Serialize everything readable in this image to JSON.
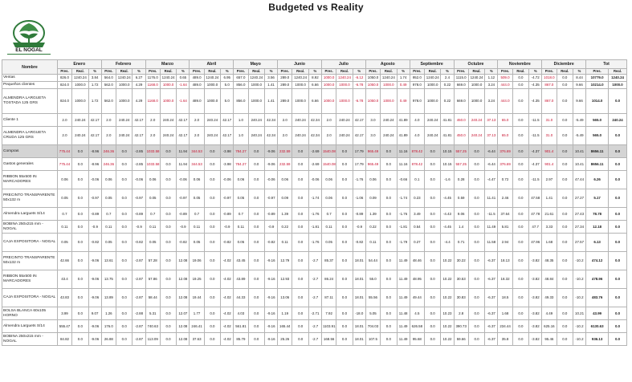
{
  "title": "Budgeted vs Reality",
  "logo": {
    "name": "EL NOGAL"
  },
  "months": [
    "Enero",
    "Febrero",
    "Marzo",
    "Abril",
    "Mayo",
    "Junio",
    "Julio",
    "Agosto",
    "Septiembre",
    "Octubre",
    "Noviembre",
    "Diciembre"
  ],
  "header": {
    "nombre": "Nombre",
    "tot": "Tot",
    "pres": "Pres.",
    "real": "Real.",
    "pct": "%"
  },
  "rows": [
    {
      "name": "Ventas",
      "hl": false,
      "h": "r-thin",
      "cells": [
        "826.0",
        "1240.24",
        "3.84",
        "564.0",
        "1240.24",
        "6.27",
        "1176.0",
        "1240.24",
        "0.65",
        "489.0",
        "1240.24",
        "6.95",
        "657.0",
        "1240.24",
        "3.56",
        "289.0",
        "1240.24",
        "8.92",
        "1000.0",
        "1240.24",
        "-6.12",
        "1050.0",
        "1240.24",
        "1.74",
        "952.0",
        "1240.24",
        "2.4",
        "1115.0",
        "1240.24",
        "1.12",
        "509.0",
        "0.0",
        "-4.72",
        "1018.0",
        "0.0",
        "8.44"
      ],
      "tot": [
        "10779.0",
        "1240.24"
      ],
      "red": [
        18,
        19,
        20,
        30,
        33
      ]
    },
    {
      "name": "Pequeños clientes",
      "hl": false,
      "h": "r-thin",
      "cells": [
        "824.0",
        "1000.0",
        "1.72",
        "562.0",
        "1000.0",
        "4.29",
        "1168.0",
        "1000.0",
        "-1.64",
        "489.0",
        "1000.0",
        "5.0",
        "856.0",
        "1000.0",
        "1.41",
        "289.0",
        "1000.0",
        "6.66",
        "1000.0",
        "1000.0",
        "-6.78",
        "1050.0",
        "1000.0",
        "0.49",
        "978.0",
        "1000.0",
        "0.22",
        "669.0",
        "1000.0",
        "3.24",
        "444.0",
        "0.0",
        "-4.35",
        "867.0",
        "0.0",
        "9.66"
      ],
      "tot": [
        "10214.0",
        "1000.0"
      ],
      "red": [
        6,
        7,
        8,
        18,
        19,
        20,
        21,
        22,
        23,
        30,
        33
      ]
    },
    {
      "name": "ALMENDRA LARGUETA TOSTADA 125 GRS",
      "hl": false,
      "h": "r-xt",
      "cells": [
        "824.0",
        "1000.0",
        "1.72",
        "562.0",
        "1000.0",
        "4.29",
        "1168.0",
        "1000.0",
        "-1.64",
        "489.0",
        "1000.0",
        "5.0",
        "856.0",
        "1000.0",
        "1.41",
        "289.0",
        "1000.0",
        "6.66",
        "1000.0",
        "1000.0",
        "-6.78",
        "1050.0",
        "1000.0",
        "0.49",
        "978.0",
        "1000.0",
        "0.22",
        "669.0",
        "1000.0",
        "3.24",
        "444.0",
        "0.0",
        "-4.35",
        "867.0",
        "0.0",
        "9.66"
      ],
      "tot": [
        "1014.0",
        "0.0"
      ],
      "red": [
        6,
        7,
        8,
        18,
        19,
        20,
        21,
        22,
        23,
        30,
        33
      ]
    },
    {
      "name": "Cliente 1",
      "hl": false,
      "h": "r-med",
      "cells": [
        "2.0",
        "240.24",
        "42.17",
        "2.0",
        "240.24",
        "42.17",
        "2.0",
        "240.24",
        "42.17",
        "2.0",
        "240.24",
        "42.17",
        "1.0",
        "240.24",
        "42.34",
        "2.0",
        "240.24",
        "42.34",
        "2.0",
        "240.24",
        "42.17",
        "3.0",
        "240.24",
        "41.89",
        "4.0",
        "240.24",
        "41.81",
        "450.0",
        "240.24",
        "37.13",
        "65.0",
        "0.0",
        "-11.5",
        "31.0",
        "0.0",
        "-5.49"
      ],
      "tot": [
        "565.0",
        "240.24"
      ],
      "red": [
        27,
        28,
        29,
        30,
        33
      ]
    },
    {
      "name": "ALMENDRA LARGUETA CRUDA 125 GRS",
      "hl": false,
      "h": "r-tall",
      "cells": [
        "2.0",
        "240.24",
        "42.17",
        "2.0",
        "240.24",
        "42.17",
        "2.0",
        "240.24",
        "42.17",
        "2.0",
        "240.24",
        "42.17",
        "1.0",
        "240.24",
        "42.34",
        "2.0",
        "240.24",
        "42.34",
        "2.0",
        "240.24",
        "42.17",
        "3.0",
        "240.24",
        "41.89",
        "4.0",
        "240.24",
        "41.81",
        "450.0",
        "240.24",
        "37.13",
        "65.0",
        "0.0",
        "-11.5",
        "31.0",
        "0.0",
        "-5.49"
      ],
      "tot": [
        "565.0",
        "0.0"
      ],
      "red": [
        27,
        28,
        29,
        30,
        33
      ]
    },
    {
      "name": "Compras",
      "hl": true,
      "h": "r-med",
      "cells": [
        "775.44",
        "0.0",
        "-8.96",
        "246.36",
        "0.0",
        "-2.85",
        "1033.58",
        "0.0",
        "11.94",
        "344.53",
        "0.0",
        "-3.98",
        "784.27",
        "0.0",
        "-9.06",
        "232.59",
        "0.0",
        "-2.69",
        "1540.08",
        "0.0",
        "17.79",
        "965.49",
        "0.0",
        "11.16",
        "878.42",
        "0.0",
        "10.15",
        "557.25",
        "0.0",
        "-6.44",
        "376.69",
        "0.0",
        "-4.37",
        "901.4",
        "0.0",
        "10.41"
      ],
      "tot": [
        "8656.11",
        "0.0"
      ],
      "red": [
        0,
        3,
        6,
        9,
        12,
        15,
        18,
        21,
        24,
        27,
        30,
        33
      ]
    },
    {
      "name": "Gastos generales",
      "hl": false,
      "h": "r-med",
      "cells": [
        "775.44",
        "0.0",
        "-8.96",
        "246.36",
        "0.0",
        "-2.85",
        "1033.58",
        "0.0",
        "11.94",
        "344.53",
        "0.0",
        "-3.98",
        "784.27",
        "0.0",
        "-9.06",
        "232.59",
        "0.0",
        "-2.69",
        "1540.08",
        "0.0",
        "17.79",
        "965.49",
        "0.0",
        "11.16",
        "878.42",
        "0.0",
        "10.15",
        "557.25",
        "0.0",
        "-6.44",
        "376.69",
        "0.0",
        "-4.37",
        "901.4",
        "0.0",
        "10.41"
      ],
      "tot": [
        "8656.11",
        "0.0"
      ],
      "red": [
        0,
        3,
        6,
        9,
        12,
        15,
        18,
        21,
        24,
        27,
        30,
        33
      ]
    },
    {
      "name": "RIBBON 55x500 IN MARCADORES",
      "hl": false,
      "h": "r-tall",
      "cells": [
        "0.06",
        "0.0",
        "-0.06",
        "0.06",
        "0.0",
        "-0.06",
        "0.06",
        "0.0",
        "-0.06",
        "0.06",
        "0.0",
        "-0.06",
        "0.06",
        "0.0",
        "-0.06",
        "0.06",
        "0.0",
        "-0.06",
        "0.06",
        "0.0",
        "-1.76",
        "0.06",
        "0.0",
        "-0.66",
        "0.1",
        "0.0",
        "-1.6",
        "0.28",
        "0.0",
        "-4.47",
        "0.72",
        "0.0",
        "-11.5",
        "2.97",
        "0.0",
        "47.44"
      ],
      "tot": [
        "6.26",
        "0.0"
      ],
      "red": []
    },
    {
      "name": "PRECINTO TRANSPARENTE 50x132 m",
      "hl": false,
      "h": "r-tall",
      "cells": [
        "0.05",
        "0.0",
        "-0.97",
        "0.05",
        "0.0",
        "-0.97",
        "0.05",
        "0.0",
        "-0.97",
        "0.05",
        "0.0",
        "-0.97",
        "0.05",
        "0.0",
        "-0.97",
        "0.09",
        "0.0",
        "-1.74",
        "0.06",
        "0.0",
        "-1.06",
        "0.09",
        "0.0",
        "-1.74",
        "0.23",
        "0.0",
        "-4.45",
        "0.59",
        "0.0",
        "11.41",
        "2.46",
        "0.0",
        "47.58",
        "1.41",
        "0.0",
        "27.27"
      ],
      "tot": [
        "5.17",
        "0.0"
      ],
      "red": []
    },
    {
      "name": "Almendra Larguets S/14",
      "hl": false,
      "h": "r-med",
      "cells": [
        "0.7",
        "0.0",
        "-0.89",
        "0.7",
        "0.0",
        "-0.89",
        "0.7",
        "0.0",
        "-0.89",
        "0.7",
        "0.0",
        "-0.89",
        "0.7",
        "0.0",
        "-0.89",
        "1.39",
        "0.0",
        "-1.76",
        "0.7",
        "0.0",
        "-0.89",
        "1.39",
        "0.0",
        "-1.76",
        "3.49",
        "0.0",
        "-4.43",
        "9.06",
        "0.0",
        "-11.5",
        "37.64",
        "0.0",
        "47.78",
        "21.61",
        "0.0",
        "27.43"
      ],
      "tot": [
        "78.78",
        "0.0"
      ],
      "red": []
    },
    {
      "name": "BOBINA 250x215 mm - NOGAL",
      "hl": false,
      "h": "r-med",
      "cells": [
        "0.11",
        "0.0",
        "-0.9",
        "0.11",
        "0.0",
        "-0.9",
        "0.11",
        "0.0",
        "-0.9",
        "0.11",
        "0.0",
        "-0.9",
        "0.11",
        "0.0",
        "-0.9",
        "0.22",
        "0.0",
        "-1.81",
        "0.11",
        "0.0",
        "-0.9",
        "0.22",
        "0.0",
        "-1.81",
        "0.54",
        "0.0",
        "-4.45",
        "1.4",
        "0.0",
        "11.49",
        "5.81",
        "0.0",
        "47.7",
        "3.33",
        "0.0",
        "27.34"
      ],
      "tot": [
        "12.18",
        "0.0"
      ],
      "red": []
    },
    {
      "name": "CAJA EXPOSITORA - NOGAL",
      "hl": false,
      "h": "r-tall",
      "cells": [
        "0.05",
        "0.0",
        "-0.82",
        "0.05",
        "0.0",
        "-0.82",
        "0.05",
        "0.0",
        "-0.82",
        "0.05",
        "0.0",
        "-0.82",
        "0.05",
        "0.0",
        "-0.82",
        "0.11",
        "0.0",
        "-1.76",
        "0.05",
        "0.0",
        "-0.82",
        "0.11",
        "0.0",
        "-1.79",
        "0.27",
        "0.0",
        "-4.4",
        "0.71",
        "0.0",
        "11.58",
        "2.94",
        "0.0",
        "47.96",
        "1.68",
        "0.0",
        "27.57"
      ],
      "tot": [
        "6.13",
        "0.0"
      ],
      "red": []
    },
    {
      "name": "PRECINTO TRANSPARENTE 50x132 m",
      "hl": false,
      "h": "r-tall",
      "cells": [
        "42.66",
        "0.0",
        "-9.06",
        "13.61",
        "0.0",
        "-2.87",
        "57.28",
        "0.0",
        "12.08",
        "19.06",
        "0.0",
        "-4.02",
        "43.45",
        "0.0",
        "-9.16",
        "12.79",
        "0.0",
        "-2.7",
        "85.37",
        "0.0",
        "18.01",
        "54.44",
        "0.0",
        "11.49",
        "48.46",
        "0.0",
        "10.22",
        "30.22",
        "0.0",
        "-6.37",
        "18.13",
        "0.0",
        "-3.82",
        "48.35",
        "0.0",
        "-10.2"
      ],
      "tot": [
        "474.12",
        "0.0"
      ],
      "red": []
    },
    {
      "name": "RIBBON 55x500 IN MARCADORES",
      "hl": false,
      "h": "r-tall",
      "cells": [
        "43.4",
        "0.0",
        "-9.06",
        "13.75",
        "0.0",
        "-2.87",
        "57.86",
        "0.0",
        "12.08",
        "19.25",
        "0.0",
        "-4.02",
        "43.89",
        "0.0",
        "-9.16",
        "12.93",
        "0.0",
        "-2.7",
        "86.24",
        "0.0",
        "18.01",
        "55.0",
        "0.0",
        "11.49",
        "48.95",
        "0.0",
        "10.22",
        "30.53",
        "0.0",
        "-6.37",
        "18.32",
        "0.0",
        "-3.82",
        "48.84",
        "0.0",
        "-10.2"
      ],
      "tot": [
        "478.96",
        "0.0"
      ],
      "red": []
    },
    {
      "name": "CAJA EXPOSITORA - NOGAL",
      "hl": false,
      "h": "r-tall",
      "cells": [
        "43.83",
        "0.0",
        "-9.06",
        "13.89",
        "0.0",
        "-2.87",
        "58.44",
        "0.0",
        "12.08",
        "19.44",
        "0.0",
        "-4.02",
        "44.33",
        "0.0",
        "-9.16",
        "13.06",
        "0.0",
        "-2.7",
        "87.11",
        "0.0",
        "18.01",
        "55.56",
        "0.0",
        "11.49",
        "49.44",
        "0.0",
        "10.22",
        "30.83",
        "0.0",
        "-6.37",
        "18.5",
        "0.0",
        "-3.82",
        "49.33",
        "0.0",
        "-10.2"
      ],
      "tot": [
        "483.76",
        "0.0"
      ],
      "red": []
    },
    {
      "name": "BOLSA BLANCA 60x105 HORNO",
      "hl": false,
      "h": "r-med",
      "cells": [
        "3.99",
        "0.0",
        "9.07",
        "1.26",
        "0.0",
        "-2.88",
        "5.31",
        "0.0",
        "12.07",
        "1.77",
        "0.0",
        "-4.02",
        "4.03",
        "0.0",
        "-9.16",
        "1.19",
        "0.0",
        "-2.71",
        "7.92",
        "0.0",
        "-18.0",
        "5.05",
        "0.0",
        "11.48",
        "4.5",
        "0.0",
        "10.23",
        "2.8",
        "0.0",
        "-6.37",
        "1.68",
        "0.0",
        "-3.82",
        "4.49",
        "0.0",
        "10.21"
      ],
      "tot": [
        "43.99",
        "0.0"
      ],
      "red": []
    },
    {
      "name": "Almendra Larguets S/14",
      "hl": false,
      "h": "r-med",
      "cells": [
        "555.47",
        "0.0",
        "-9.06",
        "176.0",
        "0.0",
        "-2.87",
        "740.63",
        "0.0",
        "12.08",
        "246.41",
        "0.0",
        "-4.02",
        "561.81",
        "0.0",
        "-9.16",
        "165.44",
        "0.0",
        "-2.7",
        "1103.91",
        "0.0",
        "18.01",
        "704.03",
        "0.0",
        "11.49",
        "626.58",
        "0.0",
        "10.22",
        "390.73",
        "0.0",
        "-6.37",
        "234.44",
        "0.0",
        "-3.82",
        "625.16",
        "0.0",
        "-10.2"
      ],
      "tot": [
        "6130.63",
        "0.0"
      ],
      "red": []
    },
    {
      "name": "BOBINA 250x215 mm - NOGAL",
      "hl": false,
      "h": "r-med",
      "cells": [
        "84.82",
        "0.0",
        "-9.06",
        "26.88",
        "0.0",
        "-2.87",
        "113.09",
        "0.0",
        "12.08",
        "37.63",
        "0.0",
        "-4.02",
        "85.79",
        "0.0",
        "-9.16",
        "25.26",
        "0.0",
        "-2.7",
        "168.56",
        "0.0",
        "18.01",
        "107.5",
        "0.0",
        "11.49",
        "95.68",
        "0.0",
        "10.22",
        "59.66",
        "0.0",
        "-6.37",
        "35.8",
        "0.0",
        "-3.82",
        "95.46",
        "0.0",
        "-10.2"
      ],
      "tot": [
        "936.13",
        "0.0"
      ],
      "red": []
    }
  ]
}
